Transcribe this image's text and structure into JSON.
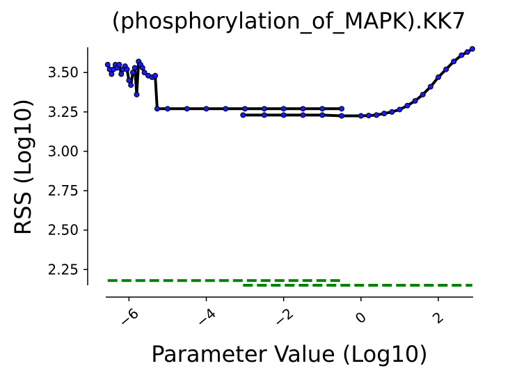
{
  "chart_data": {
    "type": "line",
    "title": "(phosphorylation_of_MAPK).KK7",
    "xlabel": "Parameter Value (Log10)",
    "ylabel": "RSS (Log10)",
    "xlim": [
      -6.6,
      2.9
    ],
    "ylim": [
      2.15,
      3.66
    ],
    "x_ticks": [
      -6,
      -4,
      -2,
      0,
      2
    ],
    "x_tick_labels": [
      "−6",
      "−4",
      "−2",
      "0",
      "2"
    ],
    "y_ticks": [
      2.25,
      2.5,
      2.75,
      3.0,
      3.25,
      3.5
    ],
    "y_tick_labels": [
      "2.25",
      "2.50",
      "2.75",
      "3.00",
      "3.25",
      "3.50"
    ],
    "grid": false,
    "legend": "none",
    "colors": {
      "profile_line": "#000000",
      "profile_points": "#1a1aff",
      "threshold": "#008000"
    },
    "series": [
      {
        "style": "profile",
        "points": [
          [
            -6.55,
            3.55
          ],
          [
            -6.5,
            3.52
          ],
          [
            -6.45,
            3.49
          ],
          [
            -6.4,
            3.52
          ],
          [
            -6.35,
            3.55
          ],
          [
            -6.3,
            3.53
          ],
          [
            -6.25,
            3.55
          ],
          [
            -6.2,
            3.49
          ],
          [
            -6.15,
            3.52
          ],
          [
            -6.1,
            3.54
          ],
          [
            -6.05,
            3.52
          ],
          [
            -6.0,
            3.45
          ],
          [
            -5.95,
            3.42
          ],
          [
            -5.9,
            3.5
          ],
          [
            -5.85,
            3.53
          ],
          [
            -5.8,
            3.36
          ],
          [
            -5.75,
            3.57
          ],
          [
            -5.7,
            3.55
          ],
          [
            -5.65,
            3.53
          ],
          [
            -5.6,
            3.5
          ],
          [
            -5.5,
            3.48
          ],
          [
            -5.4,
            3.47
          ],
          [
            -5.32,
            3.48
          ],
          [
            -5.27,
            3.27
          ],
          [
            -5.0,
            3.27
          ],
          [
            -4.5,
            3.27
          ],
          [
            -4.0,
            3.27
          ],
          [
            -3.5,
            3.27
          ],
          [
            -3.0,
            3.27
          ],
          [
            -2.5,
            3.27
          ],
          [
            -2.0,
            3.27
          ],
          [
            -1.5,
            3.27
          ],
          [
            -1.0,
            3.27
          ],
          [
            -0.5,
            3.27
          ]
        ]
      },
      {
        "style": "profile",
        "points": [
          [
            -3.05,
            3.23
          ],
          [
            -2.5,
            3.23
          ],
          [
            -2.0,
            3.23
          ],
          [
            -1.5,
            3.23
          ],
          [
            -1.0,
            3.23
          ],
          [
            -0.5,
            3.225
          ],
          [
            0.0,
            3.225
          ],
          [
            0.2,
            3.227
          ],
          [
            0.4,
            3.23
          ],
          [
            0.6,
            3.24
          ],
          [
            0.8,
            3.25
          ],
          [
            1.0,
            3.265
          ],
          [
            1.2,
            3.29
          ],
          [
            1.4,
            3.32
          ],
          [
            1.6,
            3.36
          ],
          [
            1.8,
            3.41
          ],
          [
            2.0,
            3.47
          ],
          [
            2.2,
            3.52
          ],
          [
            2.4,
            3.57
          ],
          [
            2.6,
            3.61
          ],
          [
            2.75,
            3.63
          ],
          [
            2.88,
            3.65
          ]
        ]
      }
    ],
    "thresholds": [
      {
        "style": "dashed",
        "value": 2.18,
        "x_range": [
          -6.55,
          -0.5
        ]
      },
      {
        "style": "dashed",
        "value": 2.15,
        "x_range": [
          -3.05,
          2.88
        ]
      }
    ]
  }
}
